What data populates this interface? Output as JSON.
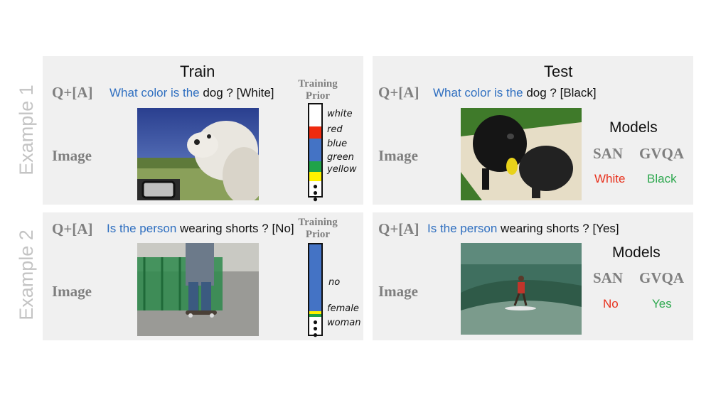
{
  "side_labels": {
    "ex1": "Example 1",
    "ex2": "Example 2"
  },
  "columns": {
    "train": "Train",
    "test": "Test"
  },
  "row_labels": {
    "qa": "Q+[A]",
    "image": "Image"
  },
  "prior_title": {
    "line1": "Training",
    "line2": "Prior"
  },
  "example1": {
    "train_question": {
      "prefix": "What color is the",
      "rest": " dog ? [White]"
    },
    "test_question": {
      "prefix": "What color is the",
      "rest": " dog ? [Black]"
    },
    "prior_labels": [
      "white",
      "red",
      "blue",
      "green",
      "yellow"
    ],
    "prior_distribution": [
      {
        "label": "white",
        "fraction": 0.24,
        "color": "#ffffff"
      },
      {
        "label": "red",
        "fraction": 0.13,
        "color": "#ef2b10"
      },
      {
        "label": "blue",
        "fraction": 0.25,
        "color": "#4473c5"
      },
      {
        "label": "green",
        "fraction": 0.12,
        "color": "#20a34a"
      },
      {
        "label": "yellow",
        "fraction": 0.1,
        "color": "#fff200"
      }
    ],
    "models_title": "Models",
    "models": [
      {
        "name": "SAN",
        "answer": "White",
        "color": "#e8321e"
      },
      {
        "name": "GVQA",
        "answer": "Black",
        "color": "#2ea84f"
      }
    ]
  },
  "example2": {
    "train_question": {
      "prefix": "Is the person",
      "rest": " wearing shorts ? [No]"
    },
    "test_question": {
      "prefix": "Is the person",
      "rest": " wearing shorts ? [Yes]"
    },
    "prior_labels": [
      "no",
      "female",
      "woman"
    ],
    "prior_distribution": [
      {
        "label": "no",
        "fraction": 0.74,
        "color": "#4473c5"
      },
      {
        "label": "female",
        "fraction": 0.03,
        "color": "#fff200"
      },
      {
        "label": "woman",
        "fraction": 0.03,
        "color": "#20a34a"
      }
    ],
    "models_title": "Models",
    "models": [
      {
        "name": "SAN",
        "answer": "No",
        "color": "#e8321e"
      },
      {
        "name": "GVQA",
        "answer": "Yes",
        "color": "#2ea84f"
      }
    ]
  },
  "colors": {
    "question_blue": "#2f6fc0",
    "panel_bg": "#f0f0f0",
    "label_gray": "#7f7f7f"
  }
}
